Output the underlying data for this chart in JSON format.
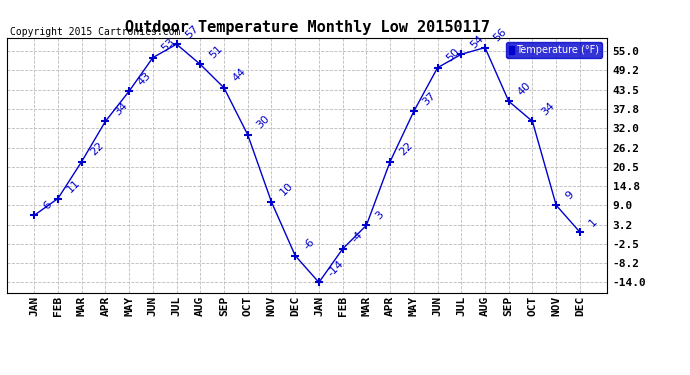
{
  "title": "Outdoor Temperature Monthly Low 20150117",
  "copyright": "Copyright 2015 Cartronics.com",
  "legend_label": "Temperature (°F)",
  "x_labels": [
    "JAN",
    "FEB",
    "MAR",
    "APR",
    "MAY",
    "JUN",
    "JUL",
    "AUG",
    "SEP",
    "OCT",
    "NOV",
    "DEC",
    "JAN",
    "FEB",
    "MAR",
    "APR",
    "MAY",
    "JUN",
    "JUL",
    "AUG",
    "SEP",
    "OCT",
    "NOV",
    "DEC"
  ],
  "y_values": [
    6,
    11,
    22,
    34,
    43,
    53,
    57,
    51,
    44,
    30,
    10,
    -6,
    -14,
    -4,
    3,
    22,
    37,
    50,
    54,
    56,
    40,
    34,
    9,
    1
  ],
  "y_ticks": [
    -14.0,
    -8.2,
    -2.5,
    3.2,
    9.0,
    14.8,
    20.5,
    26.2,
    32.0,
    37.8,
    43.5,
    49.2,
    55.0
  ],
  "ylim": [
    -17,
    59
  ],
  "line_color": "#0000CC",
  "marker": "+",
  "marker_size": 6,
  "grid_color": "#BBBBBB",
  "bg_color": "#FFFFFF",
  "title_fontsize": 11,
  "label_fontsize": 7,
  "tick_fontsize": 8,
  "annotation_fontsize": 8,
  "copyright_fontsize": 7
}
